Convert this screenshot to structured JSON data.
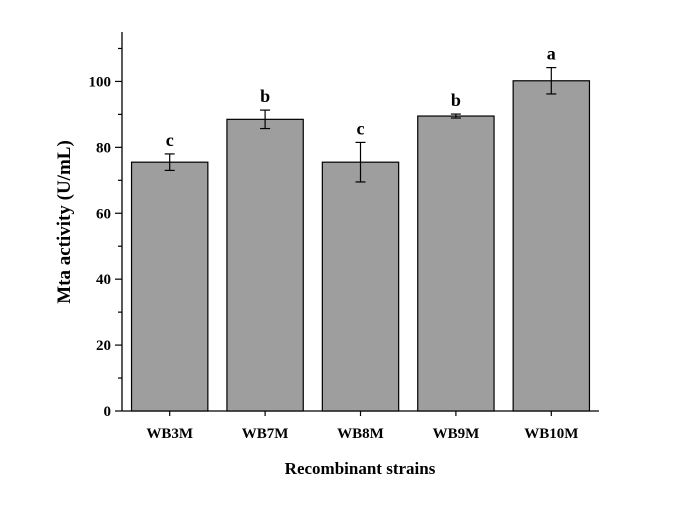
{
  "chart_data": {
    "type": "bar",
    "xlabel": "Recombinant strains",
    "ylabel": "Mta activity (U/mL)",
    "ylim": [
      0,
      115
    ],
    "yticks": [
      0,
      20,
      40,
      60,
      80,
      100
    ],
    "grid": false,
    "categories": [
      "WB3M",
      "WB7M",
      "WB8M",
      "WB9M",
      "WB10M"
    ],
    "values": [
      75.5,
      88.5,
      75.5,
      89.5,
      100.2
    ],
    "errors": [
      2.5,
      2.8,
      6.0,
      0.6,
      4.0
    ],
    "significance": [
      "c",
      "b",
      "c",
      "b",
      "a"
    ],
    "colors": {
      "bar": "#9e9e9e",
      "stroke": "#000000"
    }
  }
}
